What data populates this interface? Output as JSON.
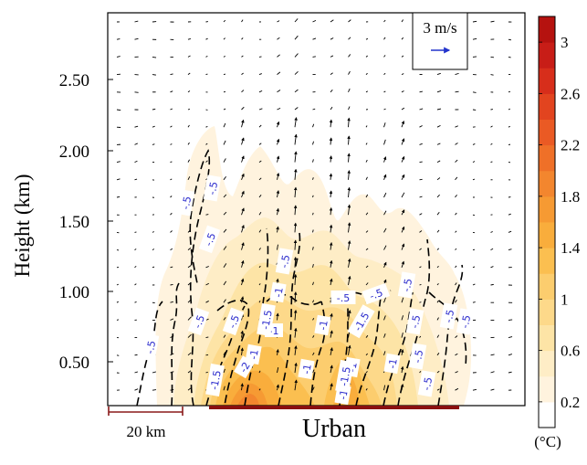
{
  "chart_data": {
    "type": "heatmap",
    "title": "",
    "ylabel": "Height (km)",
    "xlabel": "",
    "ylim": [
      0,
      3.0
    ],
    "y_ticks": [
      "0.50",
      "1.00",
      "1.50",
      "2.00",
      "2.50"
    ],
    "colorbar": {
      "unit": "(°C)",
      "tick_labels": [
        "0.2",
        "0.6",
        "1",
        "1.4",
        "1.8",
        "2.2",
        "2.6",
        "3"
      ],
      "levels": [
        0.2,
        0.4,
        0.6,
        0.8,
        1.0,
        1.2,
        1.4,
        1.6,
        1.8,
        2.0,
        2.2,
        2.4,
        2.6,
        2.8,
        3.0
      ],
      "colors": [
        "#ffffff",
        "#fff3de",
        "#feedc6",
        "#fde4a6",
        "#fdd98a",
        "#fccd6e",
        "#fbbf50",
        "#f9ad3c",
        "#f69a33",
        "#f3862e",
        "#ef7028",
        "#ea5a24",
        "#e2441f",
        "#d72e1b",
        "#c81d17",
        "#b5120f"
      ]
    },
    "vector_key": {
      "label": "3 m/s"
    },
    "contour_labels": [
      "-.5",
      "-.5",
      "-.5",
      "-.5",
      "-.5",
      "-.5",
      "-.5",
      "-.5",
      "-.5",
      "-.5",
      "-.5",
      "-.5",
      "-.5",
      "-.5",
      "-.5",
      "-1",
      "-1",
      "-1",
      "-1",
      "-1",
      "-1",
      "-1",
      "-1",
      "-1.5",
      "-1.5",
      "-1.5",
      "-1.5",
      "-2"
    ],
    "annotations": {
      "scale_bar": "20 km",
      "urban_label": "Urban"
    }
  }
}
